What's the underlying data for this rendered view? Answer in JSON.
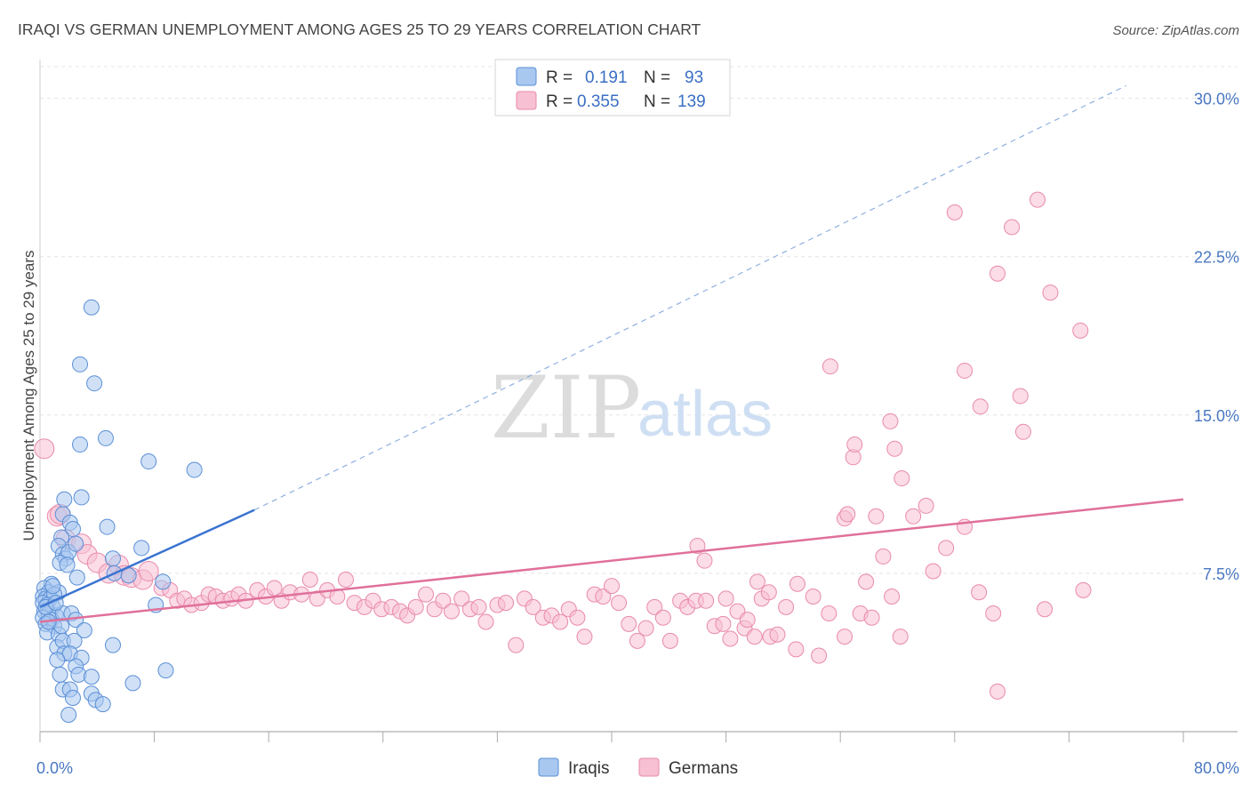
{
  "title": "IRAQI VS GERMAN UNEMPLOYMENT AMONG AGES 25 TO 29 YEARS CORRELATION CHART",
  "source": "Source: ZipAtlas.com",
  "watermark": {
    "zip": "ZIP",
    "atlas": "atlas"
  },
  "legend": {
    "iraqis": {
      "r_label": "R =",
      "r_value": "0.191",
      "n_label": "N =",
      "n_value": "93"
    },
    "germans": {
      "r_label": "R =",
      "r_value": "0.355",
      "n_label": "N =",
      "n_value": "139"
    }
  },
  "colors": {
    "iraqis_fill": "#a9c8f0",
    "iraqis_stroke": "#5b8fd6",
    "iraqis_line": "#3b74d1",
    "germans_fill": "#f7c0d3",
    "germans_stroke": "#e98aab",
    "germans_line": "#e0709a",
    "grid": "#e4e4e4"
  },
  "chart_data": {
    "type": "scatter",
    "xlabel": "",
    "ylabel": "Unemployment Among Ages 25 to 29 years",
    "xlim": [
      0,
      80
    ],
    "ylim": [
      0,
      31.5
    ],
    "x_tick_labels": [
      {
        "value": 0,
        "label": "0.0%"
      },
      {
        "value": 80,
        "label": "80.0%"
      }
    ],
    "y_ticks": [
      {
        "value": 7.5,
        "label": "7.5%"
      },
      {
        "value": 15,
        "label": "15.0%"
      },
      {
        "value": 22.5,
        "label": "22.5%"
      },
      {
        "value": 30,
        "label": "30.0%"
      }
    ],
    "x_minor_ticks": [
      0,
      8,
      16,
      24,
      32,
      40,
      48,
      56,
      64,
      72,
      80
    ],
    "grid": true,
    "legend_position": "top-center",
    "series": [
      {
        "name": "Iraqis",
        "points": [
          [
            3.6,
            20.1
          ],
          [
            2.8,
            17.4
          ],
          [
            3.8,
            16.5
          ],
          [
            2.8,
            13.6
          ],
          [
            4.6,
            13.9
          ],
          [
            7.6,
            12.8
          ],
          [
            10.8,
            12.4
          ],
          [
            1.6,
            10.3
          ],
          [
            1.7,
            11.0
          ],
          [
            2.9,
            11.1
          ],
          [
            2.1,
            9.9
          ],
          [
            2.3,
            9.6
          ],
          [
            1.5,
            9.2
          ],
          [
            4.7,
            9.7
          ],
          [
            7.1,
            8.7
          ],
          [
            1.3,
            8.8
          ],
          [
            1.6,
            8.4
          ],
          [
            1.8,
            8.2
          ],
          [
            2.0,
            8.5
          ],
          [
            1.4,
            8.0
          ],
          [
            2.5,
            8.9
          ],
          [
            1.9,
            7.9
          ],
          [
            5.1,
            8.2
          ],
          [
            5.2,
            7.5
          ],
          [
            6.2,
            7.4
          ],
          [
            8.6,
            7.1
          ],
          [
            2.6,
            7.3
          ],
          [
            0.8,
            7.0
          ],
          [
            0.3,
            6.8
          ],
          [
            0.6,
            6.6
          ],
          [
            1.3,
            6.6
          ],
          [
            0.2,
            6.4
          ],
          [
            0.4,
            6.3
          ],
          [
            0.7,
            6.3
          ],
          [
            1.0,
            6.5
          ],
          [
            0.2,
            6.1
          ],
          [
            0.5,
            6.0
          ],
          [
            0.9,
            5.9
          ],
          [
            0.3,
            5.7
          ],
          [
            0.6,
            5.6
          ],
          [
            1.1,
            5.5
          ],
          [
            0.2,
            5.4
          ],
          [
            0.8,
            5.3
          ],
          [
            1.6,
            5.6
          ],
          [
            2.2,
            5.6
          ],
          [
            2.5,
            5.3
          ],
          [
            0.4,
            5.1
          ],
          [
            1.0,
            5.0
          ],
          [
            0.5,
            4.7
          ],
          [
            1.3,
            4.6
          ],
          [
            1.5,
            5.0
          ],
          [
            3.1,
            4.8
          ],
          [
            8.1,
            6.0
          ],
          [
            1.2,
            4.0
          ],
          [
            1.6,
            4.3
          ],
          [
            2.4,
            4.3
          ],
          [
            1.7,
            3.7
          ],
          [
            2.1,
            3.7
          ],
          [
            2.9,
            3.5
          ],
          [
            5.1,
            4.1
          ],
          [
            1.2,
            3.4
          ],
          [
            1.4,
            2.7
          ],
          [
            2.5,
            3.1
          ],
          [
            2.7,
            2.7
          ],
          [
            3.6,
            2.6
          ],
          [
            8.8,
            2.9
          ],
          [
            6.5,
            2.3
          ],
          [
            1.6,
            2.0
          ],
          [
            2.1,
            2.0
          ],
          [
            3.6,
            1.8
          ],
          [
            2.3,
            1.6
          ],
          [
            3.9,
            1.5
          ],
          [
            4.4,
            1.3
          ],
          [
            2.0,
            0.8
          ],
          [
            0.4,
            5.9
          ],
          [
            0.9,
            6.9
          ],
          [
            1.1,
            6.1
          ],
          [
            0.6,
            5.2
          ]
        ]
      },
      {
        "name": "Germans",
        "points": [
          [
            0.3,
            13.4
          ],
          [
            1.2,
            10.2
          ],
          [
            1.4,
            10.3
          ],
          [
            1.8,
            9.1
          ],
          [
            2.9,
            8.9
          ],
          [
            3.3,
            8.4
          ],
          [
            4.0,
            8.0
          ],
          [
            4.8,
            7.5
          ],
          [
            5.5,
            7.9
          ],
          [
            5.9,
            7.4
          ],
          [
            6.4,
            7.3
          ],
          [
            7.2,
            7.2
          ],
          [
            7.6,
            7.6
          ],
          [
            8.5,
            6.8
          ],
          [
            9.1,
            6.7
          ],
          [
            9.6,
            6.2
          ],
          [
            10.1,
            6.3
          ],
          [
            10.6,
            6.0
          ],
          [
            11.3,
            6.1
          ],
          [
            11.8,
            6.5
          ],
          [
            12.3,
            6.4
          ],
          [
            12.8,
            6.2
          ],
          [
            13.4,
            6.3
          ],
          [
            13.9,
            6.5
          ],
          [
            14.4,
            6.2
          ],
          [
            15.2,
            6.7
          ],
          [
            15.8,
            6.4
          ],
          [
            16.4,
            6.8
          ],
          [
            16.9,
            6.2
          ],
          [
            17.5,
            6.6
          ],
          [
            18.3,
            6.5
          ],
          [
            18.9,
            7.2
          ],
          [
            19.4,
            6.3
          ],
          [
            20.1,
            6.7
          ],
          [
            20.8,
            6.4
          ],
          [
            21.4,
            7.2
          ],
          [
            22.0,
            6.1
          ],
          [
            22.7,
            5.9
          ],
          [
            23.3,
            6.2
          ],
          [
            23.9,
            5.8
          ],
          [
            24.6,
            5.9
          ],
          [
            25.2,
            5.7
          ],
          [
            25.7,
            5.5
          ],
          [
            26.3,
            5.9
          ],
          [
            27.0,
            6.5
          ],
          [
            27.6,
            5.8
          ],
          [
            28.2,
            6.2
          ],
          [
            28.8,
            5.7
          ],
          [
            29.5,
            6.3
          ],
          [
            30.1,
            5.8
          ],
          [
            30.7,
            5.9
          ],
          [
            31.2,
            5.2
          ],
          [
            32.0,
            6.0
          ],
          [
            32.6,
            6.1
          ],
          [
            33.3,
            4.1
          ],
          [
            33.9,
            6.3
          ],
          [
            34.5,
            5.9
          ],
          [
            35.2,
            5.4
          ],
          [
            35.8,
            5.5
          ],
          [
            36.4,
            5.2
          ],
          [
            37.0,
            5.8
          ],
          [
            37.6,
            5.4
          ],
          [
            38.1,
            4.5
          ],
          [
            38.8,
            6.5
          ],
          [
            39.4,
            6.4
          ],
          [
            40.0,
            6.9
          ],
          [
            40.5,
            6.1
          ],
          [
            41.2,
            5.1
          ],
          [
            41.8,
            4.3
          ],
          [
            42.4,
            4.9
          ],
          [
            43.0,
            5.9
          ],
          [
            43.6,
            5.4
          ],
          [
            44.1,
            4.3
          ],
          [
            44.8,
            6.2
          ],
          [
            45.3,
            5.9
          ],
          [
            45.9,
            6.2
          ],
          [
            46.6,
            6.2
          ],
          [
            47.2,
            5.0
          ],
          [
            47.8,
            5.1
          ],
          [
            48.3,
            4.4
          ],
          [
            48.8,
            5.7
          ],
          [
            49.3,
            4.9
          ],
          [
            50.0,
            4.5
          ],
          [
            50.5,
            6.3
          ],
          [
            51.1,
            4.5
          ],
          [
            51.6,
            4.6
          ],
          [
            52.2,
            5.9
          ],
          [
            52.9,
            3.9
          ],
          [
            54.1,
            6.4
          ],
          [
            54.5,
            3.6
          ],
          [
            55.2,
            5.6
          ],
          [
            56.3,
            4.5
          ],
          [
            57.4,
            5.6
          ],
          [
            58.2,
            5.4
          ],
          [
            59.6,
            6.4
          ],
          [
            60.2,
            4.5
          ],
          [
            46.0,
            8.8
          ],
          [
            46.5,
            8.1
          ],
          [
            50.2,
            7.1
          ],
          [
            51.0,
            6.6
          ],
          [
            57.8,
            7.1
          ],
          [
            59.0,
            8.3
          ],
          [
            61.1,
            10.2
          ],
          [
            62.0,
            10.7
          ],
          [
            63.4,
            8.7
          ],
          [
            64.7,
            9.7
          ],
          [
            65.7,
            6.6
          ],
          [
            66.7,
            5.6
          ],
          [
            56.3,
            10.1
          ],
          [
            58.5,
            10.2
          ],
          [
            60.3,
            12.0
          ],
          [
            59.8,
            13.4
          ],
          [
            56.9,
            13.0
          ],
          [
            56.5,
            10.3
          ],
          [
            55.3,
            17.3
          ],
          [
            59.5,
            14.7
          ],
          [
            65.8,
            15.4
          ],
          [
            64.7,
            17.1
          ],
          [
            68.6,
            15.9
          ],
          [
            68.8,
            14.2
          ],
          [
            67.0,
            21.7
          ],
          [
            70.7,
            20.8
          ],
          [
            72.8,
            19.0
          ],
          [
            69.8,
            25.2
          ],
          [
            64.0,
            24.6
          ],
          [
            68.0,
            23.9
          ],
          [
            73.0,
            6.7
          ],
          [
            70.3,
            5.8
          ],
          [
            67.0,
            1.9
          ],
          [
            57.0,
            13.6
          ],
          [
            62.5,
            7.6
          ],
          [
            48.0,
            6.3
          ],
          [
            53.0,
            7.0
          ],
          [
            49.5,
            5.3
          ]
        ]
      }
    ],
    "trend_lines": [
      {
        "name": "Iraqis",
        "solid": [
          [
            0,
            5.9
          ],
          [
            15,
            10.5
          ]
        ],
        "dashed": [
          [
            15,
            10.5
          ],
          [
            76,
            30.6
          ]
        ]
      },
      {
        "name": "Germans",
        "solid": [
          [
            0,
            5.2
          ],
          [
            80,
            11.0
          ]
        ]
      }
    ]
  }
}
